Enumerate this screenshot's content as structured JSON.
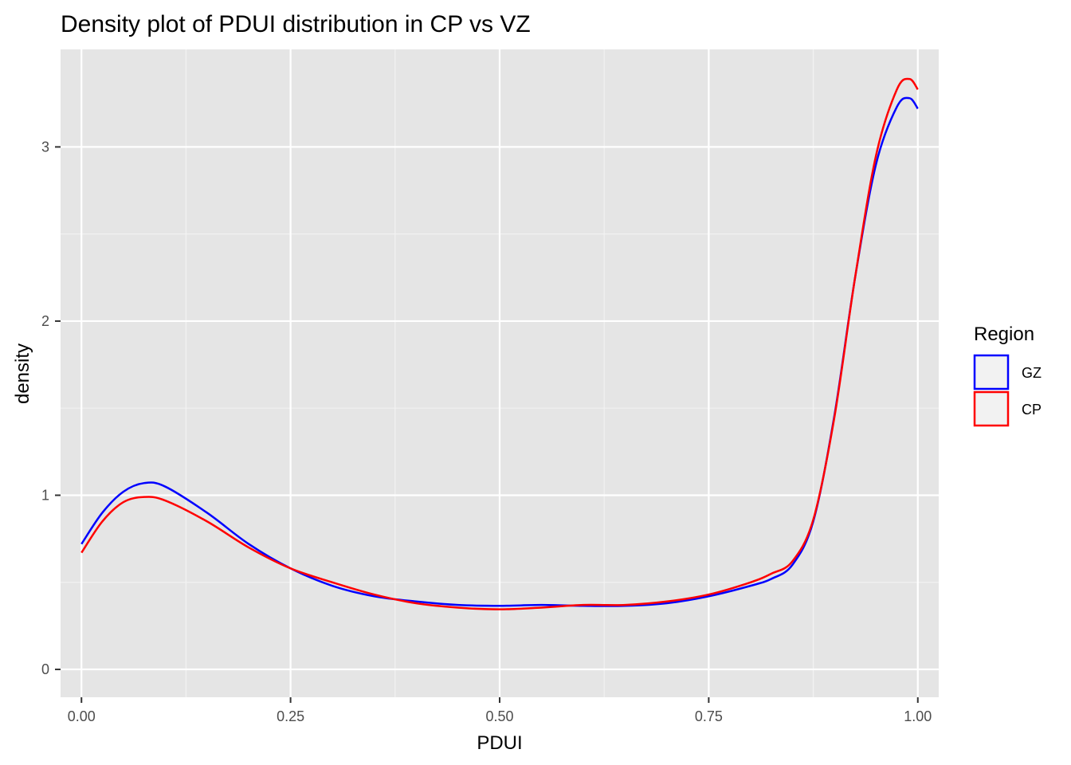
{
  "chart_data": {
    "type": "line",
    "subtype": "density",
    "title": "Density plot of PDUI distribution in CP vs VZ",
    "xlabel": "PDUI",
    "ylabel": "density",
    "xlim": [
      -0.025,
      1.025
    ],
    "ylim": [
      -0.16,
      3.56
    ],
    "x_ticks": [
      0,
      0.25,
      0.5,
      0.75,
      1
    ],
    "x_tick_labels": [
      "0.00",
      "0.25",
      "0.50",
      "0.75",
      "1.00"
    ],
    "y_ticks": [
      0,
      1,
      2,
      3
    ],
    "y_tick_labels": [
      "0",
      "1",
      "2",
      "3"
    ],
    "grid": true,
    "legend": {
      "title": "Region",
      "position": "right",
      "entries": [
        {
          "label": "GZ",
          "color": "#0000ff"
        },
        {
          "label": "CP",
          "color": "#ff0000"
        }
      ]
    },
    "series": [
      {
        "name": "GZ",
        "color": "#0000ff",
        "x": [
          0,
          0.025,
          0.05,
          0.075,
          0.1,
          0.15,
          0.2,
          0.25,
          0.3,
          0.35,
          0.4,
          0.45,
          0.5,
          0.55,
          0.6,
          0.65,
          0.7,
          0.75,
          0.8,
          0.825,
          0.85,
          0.875,
          0.9,
          0.925,
          0.95,
          0.975,
          0.99,
          1.0
        ],
        "values": [
          0.72,
          0.9,
          1.02,
          1.07,
          1.05,
          0.9,
          0.72,
          0.58,
          0.48,
          0.42,
          0.39,
          0.37,
          0.365,
          0.37,
          0.365,
          0.365,
          0.38,
          0.42,
          0.48,
          0.52,
          0.6,
          0.85,
          1.45,
          2.25,
          2.9,
          3.23,
          3.28,
          3.22
        ]
      },
      {
        "name": "CP",
        "color": "#ff0000",
        "x": [
          0,
          0.025,
          0.05,
          0.075,
          0.1,
          0.15,
          0.2,
          0.25,
          0.3,
          0.35,
          0.4,
          0.45,
          0.5,
          0.55,
          0.6,
          0.65,
          0.7,
          0.75,
          0.8,
          0.825,
          0.85,
          0.875,
          0.9,
          0.925,
          0.95,
          0.975,
          0.99,
          1.0
        ],
        "values": [
          0.67,
          0.85,
          0.96,
          0.99,
          0.97,
          0.85,
          0.7,
          0.58,
          0.5,
          0.43,
          0.38,
          0.355,
          0.345,
          0.355,
          0.37,
          0.37,
          0.39,
          0.43,
          0.5,
          0.55,
          0.62,
          0.86,
          1.44,
          2.25,
          2.95,
          3.33,
          3.39,
          3.33
        ]
      }
    ]
  }
}
